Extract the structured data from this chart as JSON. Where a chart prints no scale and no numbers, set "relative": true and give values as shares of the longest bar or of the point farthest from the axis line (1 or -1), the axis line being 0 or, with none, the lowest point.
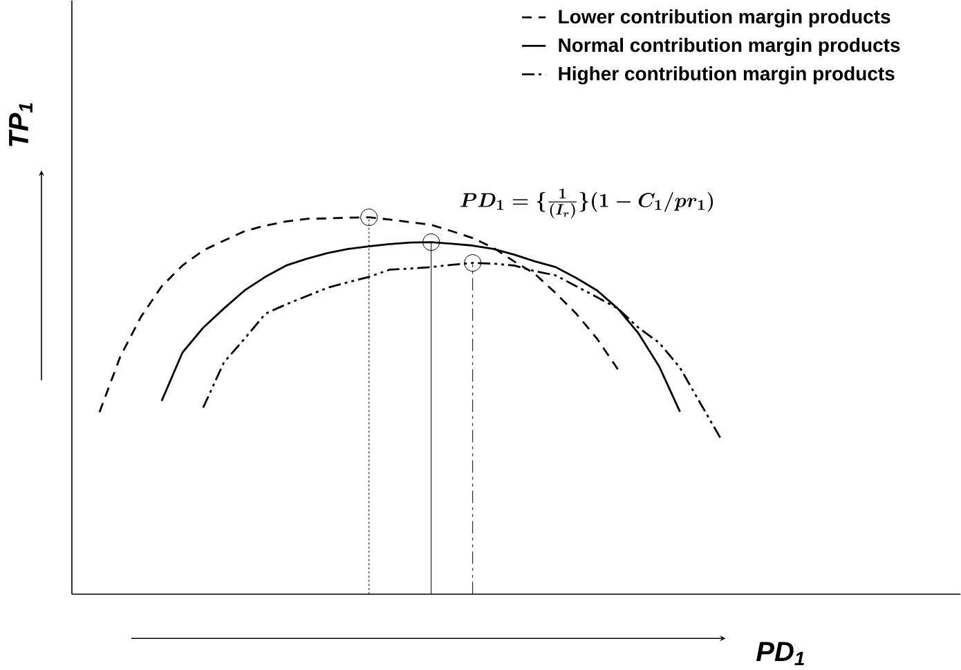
{
  "chart_data": {
    "type": "line",
    "relative": true,
    "xlabel": "PD$_{1}$",
    "ylabel": "TP$_{1}$",
    "legend": "top right",
    "annotations": [
      "PD_1 = \\{\\frac{1}{(I_r)}\\}(1 - C_1/pr_1)"
    ],
    "categories": [
      null,
      null,
      null,
      null,
      null,
      null,
      null,
      null,
      null,
      null,
      null,
      null,
      null,
      null,
      null,
      null,
      null,
      null,
      null,
      null,
      null,
      null,
      null,
      null,
      null,
      null,
      null,
      null,
      null,
      null,
      null
    ],
    "series": [
      {
        "name": "Lower contribution margin products",
        "color": "#000000",
        "line_style": "dashed",
        "values": [
          0.483,
          0.63,
          0.736,
          0.817,
          0.872,
          0.912,
          0.938,
          0.963,
          0.978,
          0.989,
          0.996,
          0.997,
          0.999,
          1.0,
          0.994,
          0.987,
          0.98,
          0.963,
          0.945,
          0.919,
          0.883,
          0.85,
          0.799,
          0.744,
          0.678,
          0.597,
          null,
          null,
          null,
          null,
          null
        ]
      },
      {
        "name": "Normal contribution margin products",
        "color": "#000000",
        "line_style": "solid",
        "values": [
          null,
          null,
          null,
          0.513,
          0.641,
          0.707,
          0.758,
          0.806,
          0.842,
          0.872,
          0.89,
          0.905,
          0.916,
          0.923,
          0.929,
          0.933,
          0.934,
          0.93,
          0.925,
          0.916,
          0.901,
          0.883,
          0.868,
          0.839,
          0.806,
          0.758,
          0.692,
          0.604,
          0.484,
          null,
          null
        ]
      },
      {
        "name": "Higher contribution margin products",
        "color": "#000000",
        "line_style": "dashdot",
        "values": [
          null,
          null,
          null,
          null,
          null,
          0.495,
          0.615,
          0.678,
          0.744,
          0.769,
          0.791,
          0.813,
          0.828,
          0.842,
          0.861,
          0.864,
          0.868,
          0.874,
          0.879,
          0.877,
          0.872,
          0.857,
          0.846,
          0.817,
          0.788,
          0.758,
          0.707,
          0.667,
          0.601,
          0.505,
          0.41
        ]
      }
    ]
  }
}
